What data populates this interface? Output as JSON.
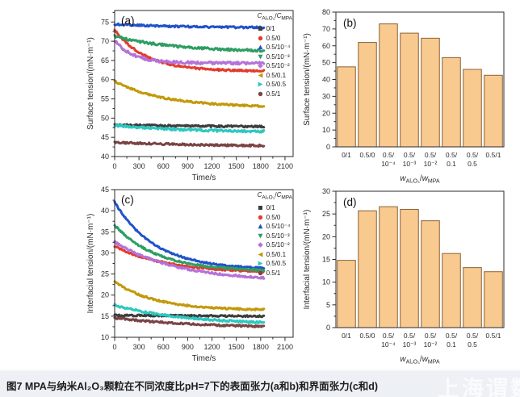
{
  "caption": {
    "text": "图7 MPA与纳米Al₂O₃颗粒在不同浓度比pH=7下的表面张力(a和b)和界面张力(c和d)"
  },
  "watermark": {
    "text": "上海谓数"
  },
  "colors": {
    "bar_fill": "#f9ca90",
    "bar_edge": "#8a6134",
    "axis": "#2b2b2b",
    "caption_bg": "#edf0f4"
  },
  "chart_data": [
    {
      "panel": "a",
      "type": "line",
      "title": "(a)",
      "xlabel": "Time/s",
      "ylabel": "Surface tension/(mN·m⁻¹)",
      "xlim": [
        0,
        2200
      ],
      "xticks": [
        0,
        300,
        600,
        900,
        1200,
        1500,
        1800,
        2100
      ],
      "minor_x_step": 150,
      "ylim": [
        40,
        78
      ],
      "yticks": [
        40,
        45,
        50,
        55,
        60,
        65,
        70,
        75
      ],
      "minor_y_step": 2.5,
      "t_end": 1840,
      "legend_title_parts": [
        "C",
        "Al₂O₃",
        "/",
        "C",
        "MPA"
      ],
      "series": [
        {
          "label": "0/1",
          "color": "#3d3d3d",
          "marker": "square",
          "y_start": 48.2,
          "y_end": 47.4,
          "tau": 2500,
          "noise": 0.5
        },
        {
          "label": "0.5/0",
          "color": "#e23b2e",
          "marker": "circle",
          "y_start": 73.0,
          "y_end": 62.2,
          "tau": 380,
          "noise": 0.5
        },
        {
          "label": "0.5/10⁻⁴",
          "color": "#2152c9",
          "marker": "triangle-up",
          "y_start": 74.4,
          "y_end": 73.4,
          "tau": 1000,
          "noise": 0.45
        },
        {
          "label": "0.5/10⁻³",
          "color": "#2e9e63",
          "marker": "triangle-down",
          "y_start": 71.3,
          "y_end": 67.2,
          "tau": 750,
          "noise": 0.6
        },
        {
          "label": "0.5/10⁻²",
          "color": "#b572d8",
          "marker": "diamond",
          "y_start": 70.2,
          "y_end": 64.3,
          "tau": 230,
          "noise": 0.7
        },
        {
          "label": "0.5/0.1",
          "color": "#c2990a",
          "marker": "triangle-left",
          "y_start": 59.6,
          "y_end": 52.8,
          "tau": 600,
          "noise": 0.45
        },
        {
          "label": "0.5/0.5",
          "color": "#2cc8c0",
          "marker": "triangle-right",
          "y_start": 48.1,
          "y_end": 46.3,
          "tau": 900,
          "noise": 0.55
        },
        {
          "label": "0.5/1",
          "color": "#7a4444",
          "marker": "circle",
          "y_start": 43.7,
          "y_end": 42.5,
          "tau": 1400,
          "noise": 0.5
        }
      ]
    },
    {
      "panel": "b",
      "type": "bar",
      "title": "(b)",
      "ylabel": "Surface tension/(mN·m⁻¹)",
      "xlabel_parts": [
        "w",
        "Al₂O₃",
        "/",
        "w",
        "MPA"
      ],
      "ylim": [
        0,
        80
      ],
      "yticks": [
        0,
        10,
        20,
        30,
        40,
        50,
        60,
        70,
        80
      ],
      "minor_y_step": 5,
      "categories": [
        [
          "0/1"
        ],
        [
          "0.5/0"
        ],
        [
          "0.5/",
          "10⁻⁴"
        ],
        [
          "0.5/",
          "10⁻³"
        ],
        [
          "0.5/",
          "10⁻²"
        ],
        [
          "0.5/",
          "0.1"
        ],
        [
          "0.5/",
          "0.5"
        ],
        [
          "0.5/1"
        ]
      ],
      "values": [
        47.5,
        62,
        73,
        67.5,
        64.5,
        53,
        46,
        42.5
      ]
    },
    {
      "panel": "c",
      "type": "line",
      "title": "(c)",
      "xlabel": "Time/s",
      "ylabel": "Interfacial tension/(mN·m⁻¹)",
      "xlim": [
        0,
        2200
      ],
      "xticks": [
        0,
        300,
        600,
        900,
        1200,
        1500,
        1800,
        2100
      ],
      "minor_x_step": 150,
      "ylim": [
        10,
        45
      ],
      "yticks": [
        10,
        15,
        20,
        25,
        30,
        35,
        40,
        45
      ],
      "minor_y_step": 2.5,
      "t_end": 1840,
      "legend_title_parts": [
        "C",
        "Al₂O₃",
        "/",
        "C",
        "MPA"
      ],
      "series": [
        {
          "label": "0/1",
          "color": "#3d3d3d",
          "marker": "square",
          "y_start": 15.2,
          "y_end": 14.8,
          "tau": 3000,
          "noise": 0.4
        },
        {
          "label": "0.5/0",
          "color": "#e23b2e",
          "marker": "circle",
          "y_start": 31.6,
          "y_end": 25.2,
          "tau": 650,
          "noise": 0.4
        },
        {
          "label": "0.5/10⁻⁴",
          "color": "#2152c9",
          "marker": "triangle-up",
          "y_start": 42.0,
          "y_end": 26.0,
          "tau": 500,
          "noise": 0.35
        },
        {
          "label": "0.5/10⁻³",
          "color": "#2e9e63",
          "marker": "triangle-down",
          "y_start": 36.6,
          "y_end": 25.6,
          "tau": 520,
          "noise": 0.4
        },
        {
          "label": "0.5/10⁻²",
          "color": "#b572d8",
          "marker": "diamond",
          "y_start": 32.6,
          "y_end": 23.2,
          "tau": 780,
          "noise": 0.45
        },
        {
          "label": "0.5/0.1",
          "color": "#c2990a",
          "marker": "triangle-left",
          "y_start": 23.2,
          "y_end": 16.4,
          "tau": 500,
          "noise": 0.4
        },
        {
          "label": "0.5/0.5",
          "color": "#2cc8c0",
          "marker": "triangle-right",
          "y_start": 17.6,
          "y_end": 12.9,
          "tau": 900,
          "noise": 0.45
        },
        {
          "label": "0.5/1",
          "color": "#7a4444",
          "marker": "circle",
          "y_start": 14.6,
          "y_end": 12.2,
          "tau": 1000,
          "noise": 0.4
        }
      ]
    },
    {
      "panel": "d",
      "type": "bar",
      "title": "(d)",
      "ylabel": "Interfacial tension/(mN·m⁻¹)",
      "xlabel_parts": [
        "w",
        "Al₂O₃",
        "/",
        "w",
        "MPA"
      ],
      "ylim": [
        0,
        30
      ],
      "yticks": [
        0,
        5,
        10,
        15,
        20,
        25,
        30
      ],
      "minor_y_step": 2.5,
      "categories": [
        [
          "0/1"
        ],
        [
          "0.5/0"
        ],
        [
          "0.5/",
          "10⁻⁴"
        ],
        [
          "0.5/",
          "10⁻³"
        ],
        [
          "0.5/",
          "10⁻²"
        ],
        [
          "0.5/",
          "0.1"
        ],
        [
          "0.5/",
          "0.5"
        ],
        [
          "0.5/1"
        ]
      ],
      "values": [
        14.8,
        25.7,
        26.6,
        26.0,
        23.5,
        16.3,
        13.2,
        12.3
      ]
    }
  ]
}
